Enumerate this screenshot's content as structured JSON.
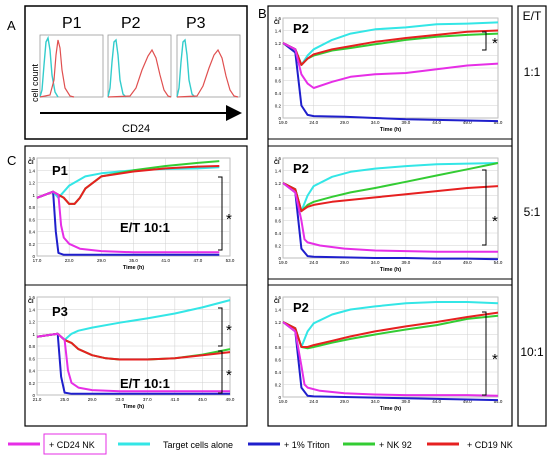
{
  "figure": {
    "panel_a": {
      "letter": "A",
      "y_axis_label": "cell count",
      "x_axis_label": "CD24",
      "hist_titles": [
        "P1",
        "P2",
        "P3"
      ]
    },
    "panel_b": {
      "letter": "B",
      "et_header": "E/T"
    },
    "panel_c": {
      "letter": "C"
    },
    "ratio_labels": [
      "1:1",
      "5:1",
      "10:1"
    ],
    "significance_mark": "*",
    "et_annotation": "E/T 10:1",
    "colors": {
      "cd24_nk": "#e62ee6",
      "target": "#33e6e6",
      "triton": "#1f1fcc",
      "nk92": "#33cc33",
      "cd19_nk": "#e62020",
      "hist_cyan": "#33cccc",
      "hist_red": "#e05050"
    },
    "legend": [
      "+ CD24 NK",
      "Target cells alone",
      "+ 1% Triton",
      "+ NK 92",
      "+ CD19 NK"
    ]
  },
  "chart_data": [
    {
      "id": "B1",
      "type": "line",
      "title": "P2",
      "ylabel": "CI",
      "xlabel": "Time (h)",
      "xlim": [
        19,
        54
      ],
      "ylim": [
        0,
        1.6
      ],
      "x_ticks": [
        "19.0",
        "24.0",
        "29.0",
        "34.0",
        "39.0",
        "44.0",
        "49.0",
        "54.0"
      ],
      "y_ticks": [
        "0",
        "0.2",
        "0.4",
        "0.6",
        "0.8",
        "1",
        "1.2",
        "1.4",
        "1.6"
      ],
      "series": [
        {
          "name": "+ CD24 NK",
          "x": [
            19,
            21,
            22,
            23,
            24,
            27,
            30,
            34,
            39,
            44,
            49,
            54
          ],
          "y": [
            1.2,
            1.1,
            0.7,
            0.55,
            0.48,
            0.58,
            0.66,
            0.7,
            0.72,
            0.78,
            0.84,
            0.87
          ]
        },
        {
          "name": "Target cells alone",
          "x": [
            19,
            21,
            22,
            23,
            24,
            27,
            30,
            34,
            39,
            44,
            49,
            54
          ],
          "y": [
            1.2,
            1.1,
            0.85,
            1.0,
            1.1,
            1.25,
            1.35,
            1.42,
            1.45,
            1.5,
            1.51,
            1.53
          ]
        },
        {
          "name": "+ 1% Triton",
          "x": [
            19,
            21,
            22,
            23,
            24,
            29,
            34,
            39,
            44,
            49,
            54
          ],
          "y": [
            1.2,
            1.05,
            0.2,
            0.05,
            0.03,
            0.02,
            0.0,
            -0.02,
            -0.03,
            -0.04,
            -0.05
          ]
        },
        {
          "name": "+ NK 92",
          "x": [
            19,
            21,
            22,
            23,
            24,
            27,
            30,
            34,
            39,
            44,
            49,
            54
          ],
          "y": [
            1.2,
            1.1,
            0.85,
            0.95,
            1.0,
            1.08,
            1.12,
            1.18,
            1.25,
            1.3,
            1.33,
            1.35
          ]
        },
        {
          "name": "+ CD19 NK",
          "x": [
            19,
            21,
            22,
            23,
            24,
            27,
            30,
            34,
            39,
            44,
            49,
            54
          ],
          "y": [
            1.2,
            1.1,
            0.85,
            0.95,
            1.02,
            1.1,
            1.15,
            1.22,
            1.28,
            1.33,
            1.38,
            1.4
          ]
        }
      ]
    },
    {
      "id": "B2",
      "type": "line",
      "title": "P2",
      "ylabel": "CI",
      "xlabel": "Time (h)",
      "xlim": [
        19,
        54
      ],
      "ylim": [
        0,
        1.6
      ],
      "x_ticks": [
        "19.0",
        "24.0",
        "29.0",
        "34.0",
        "39.0",
        "44.0",
        "49.0",
        "54.0"
      ],
      "y_ticks": [
        "0",
        "0.2",
        "0.4",
        "0.6",
        "0.8",
        "1",
        "1.2",
        "1.4",
        "1.6"
      ],
      "series": [
        {
          "name": "+ CD24 NK",
          "x": [
            19,
            21,
            22,
            22.5,
            23,
            25,
            29,
            34,
            39,
            44,
            49,
            54
          ],
          "y": [
            1.2,
            1.05,
            0.6,
            0.3,
            0.25,
            0.2,
            0.15,
            0.12,
            0.11,
            0.1,
            0.1,
            0.1
          ]
        },
        {
          "name": "Target cells alone",
          "x": [
            19,
            21,
            22,
            23,
            24,
            27,
            30,
            34,
            39,
            44,
            49,
            54
          ],
          "y": [
            1.2,
            1.1,
            0.75,
            1.0,
            1.15,
            1.3,
            1.38,
            1.43,
            1.47,
            1.5,
            1.51,
            1.52
          ]
        },
        {
          "name": "+ 1% Triton",
          "x": [
            19,
            21,
            22,
            23,
            24,
            29,
            34,
            39,
            44,
            49,
            54
          ],
          "y": [
            1.2,
            1.05,
            0.15,
            0.03,
            0.02,
            0.01,
            0.0,
            0.0,
            -0.01,
            -0.01,
            -0.02
          ]
        },
        {
          "name": "+ NK 92",
          "x": [
            19,
            21,
            22,
            23,
            24,
            27,
            30,
            34,
            39,
            44,
            49,
            54
          ],
          "y": [
            1.2,
            1.1,
            0.75,
            0.85,
            0.9,
            0.98,
            1.05,
            1.12,
            1.22,
            1.32,
            1.42,
            1.52
          ]
        },
        {
          "name": "+ CD19 NK",
          "x": [
            19,
            21,
            22,
            23,
            24,
            27,
            30,
            34,
            39,
            44,
            49,
            54
          ],
          "y": [
            1.2,
            1.1,
            0.75,
            0.82,
            0.85,
            0.9,
            0.93,
            0.97,
            1.02,
            1.07,
            1.12,
            1.15
          ]
        }
      ]
    },
    {
      "id": "B3",
      "type": "line",
      "title": "P2",
      "ylabel": "CI",
      "xlabel": "Time (h)",
      "xlim": [
        19,
        54
      ],
      "ylim": [
        0,
        1.6
      ],
      "x_ticks": [
        "19.0",
        "24.0",
        "29.0",
        "34.0",
        "39.0",
        "44.0",
        "49.0",
        "54.0"
      ],
      "y_ticks": [
        "0",
        "0.2",
        "0.4",
        "0.6",
        "0.8",
        "1",
        "1.2",
        "1.4",
        "1.6"
      ],
      "series": [
        {
          "name": "+ CD24 NK",
          "x": [
            19,
            21,
            22,
            22.5,
            23,
            25,
            29,
            34,
            39,
            44,
            49,
            54
          ],
          "y": [
            1.2,
            1.05,
            0.5,
            0.2,
            0.15,
            0.1,
            0.06,
            0.04,
            0.03,
            0.03,
            0.03,
            0.02
          ]
        },
        {
          "name": "Target cells alone",
          "x": [
            19,
            21,
            22,
            23,
            24,
            27,
            30,
            34,
            39,
            44,
            49,
            54
          ],
          "y": [
            1.2,
            1.1,
            0.8,
            1.05,
            1.18,
            1.32,
            1.4,
            1.45,
            1.5,
            1.52,
            1.52,
            1.5
          ]
        },
        {
          "name": "+ 1% Triton",
          "x": [
            19,
            21,
            22,
            23,
            24,
            29,
            34,
            39,
            44,
            49,
            54
          ],
          "y": [
            1.2,
            1.05,
            0.15,
            0.02,
            0.01,
            0.0,
            -0.01,
            -0.02,
            -0.03,
            -0.04,
            -0.05
          ]
        },
        {
          "name": "+ NK 92",
          "x": [
            19,
            21,
            22,
            23,
            24,
            27,
            30,
            34,
            39,
            44,
            49,
            54
          ],
          "y": [
            1.2,
            1.1,
            0.8,
            0.78,
            0.8,
            0.87,
            0.93,
            1.0,
            1.08,
            1.15,
            1.25,
            1.3
          ]
        },
        {
          "name": "+ CD19 NK",
          "x": [
            19,
            21,
            22,
            23,
            24,
            27,
            30,
            34,
            39,
            44,
            49,
            54
          ],
          "y": [
            1.2,
            1.1,
            0.8,
            0.8,
            0.83,
            0.9,
            0.97,
            1.05,
            1.13,
            1.2,
            1.28,
            1.35
          ]
        }
      ]
    },
    {
      "id": "C1",
      "type": "line",
      "title": "P1",
      "ylabel": "CI",
      "xlabel": "Time (h)",
      "xlim": [
        17,
        53
      ],
      "ylim": [
        0,
        1.6
      ],
      "x_ticks": [
        "17.0",
        "23.0",
        "29.0",
        "35.0",
        "41.0",
        "47.0",
        "53.0"
      ],
      "y_ticks": [
        "0",
        "0.2",
        "0.4",
        "0.6",
        "0.8",
        "1",
        "1.2",
        "1.4",
        "1.6"
      ],
      "series": [
        {
          "name": "+ CD24 NK",
          "x": [
            17,
            20,
            21,
            21.5,
            22,
            23,
            25,
            29,
            35,
            41,
            47,
            51
          ],
          "y": [
            0.95,
            1.05,
            1.0,
            0.5,
            0.3,
            0.2,
            0.12,
            0.08,
            0.06,
            0.06,
            0.06,
            0.06
          ]
        },
        {
          "name": "Target cells alone",
          "x": [
            17,
            20,
            21,
            22,
            23,
            26,
            29,
            35,
            41,
            47,
            51
          ],
          "y": [
            0.95,
            1.05,
            0.95,
            1.05,
            1.15,
            1.3,
            1.35,
            1.4,
            1.42,
            1.43,
            1.45
          ]
        },
        {
          "name": "+ 1% Triton",
          "x": [
            17,
            20,
            20.5,
            21,
            22,
            25,
            29,
            35,
            41,
            47,
            51
          ],
          "y": [
            0.95,
            1.05,
            0.4,
            0.05,
            0.02,
            0.02,
            0.02,
            0.02,
            0.02,
            0.02,
            0.02
          ]
        },
        {
          "name": "+ NK 92",
          "x": [
            17,
            20,
            21,
            22,
            23,
            24,
            25,
            26,
            29,
            35,
            41,
            47,
            51
          ],
          "y": [
            0.95,
            1.05,
            1.0,
            0.95,
            0.85,
            0.85,
            0.95,
            1.1,
            1.3,
            1.4,
            1.47,
            1.52,
            1.55
          ]
        },
        {
          "name": "+ CD19 NK",
          "x": [
            17,
            20,
            21,
            22,
            23,
            24,
            25,
            26,
            29,
            35,
            41,
            47,
            51
          ],
          "y": [
            0.95,
            1.05,
            1.0,
            0.95,
            0.85,
            0.85,
            0.95,
            1.1,
            1.3,
            1.38,
            1.43,
            1.46,
            1.47
          ]
        }
      ]
    },
    {
      "id": "C2",
      "type": "line",
      "title": "P3",
      "ylabel": "CI",
      "xlabel": "Time (h)",
      "xlim": [
        21,
        49
      ],
      "ylim": [
        0,
        1.6
      ],
      "x_ticks": [
        "21.0",
        "25.0",
        "29.0",
        "33.0",
        "37.0",
        "41.0",
        "45.0",
        "49.0"
      ],
      "y_ticks": [
        "0",
        "0.2",
        "0.4",
        "0.6",
        "0.8",
        "1",
        "1.2",
        "1.4",
        "1.6"
      ],
      "series": [
        {
          "name": "+ CD24 NK",
          "x": [
            21,
            24,
            25,
            25.5,
            26,
            27,
            29,
            33,
            37,
            41,
            45,
            49
          ],
          "y": [
            0.95,
            1.0,
            0.9,
            0.4,
            0.2,
            0.12,
            0.08,
            0.06,
            0.06,
            0.06,
            0.06,
            0.06
          ]
        },
        {
          "name": "Target cells alone",
          "x": [
            21,
            24,
            25,
            26,
            27,
            29,
            33,
            37,
            41,
            45,
            49
          ],
          "y": [
            0.95,
            1.0,
            0.9,
            1.0,
            1.05,
            1.1,
            1.18,
            1.25,
            1.33,
            1.43,
            1.55
          ]
        },
        {
          "name": "+ 1% Triton",
          "x": [
            21,
            24,
            24.5,
            25,
            26,
            29,
            33,
            37,
            41,
            45,
            49
          ],
          "y": [
            0.95,
            1.0,
            0.3,
            0.04,
            0.02,
            0.02,
            0.02,
            0.02,
            0.02,
            0.02,
            0.02
          ]
        },
        {
          "name": "+ NK 92",
          "x": [
            21,
            24,
            25,
            26,
            27,
            29,
            31,
            33,
            37,
            41,
            45,
            49
          ],
          "y": [
            0.95,
            1.0,
            0.9,
            0.85,
            0.75,
            0.65,
            0.6,
            0.58,
            0.58,
            0.6,
            0.66,
            0.75
          ]
        },
        {
          "name": "+ CD19 NK",
          "x": [
            21,
            24,
            25,
            26,
            27,
            29,
            31,
            33,
            37,
            41,
            45,
            49
          ],
          "y": [
            0.95,
            1.0,
            0.9,
            0.85,
            0.75,
            0.65,
            0.6,
            0.58,
            0.58,
            0.6,
            0.65,
            0.7
          ]
        }
      ]
    }
  ]
}
